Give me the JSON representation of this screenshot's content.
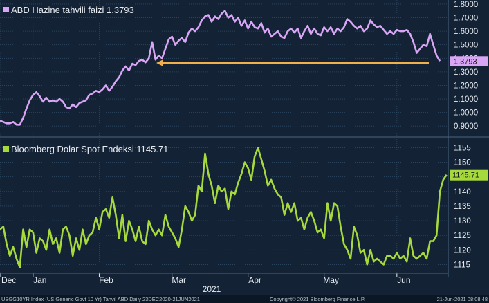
{
  "colors": {
    "background": "#132235",
    "grid": "#2f4a63",
    "text": "#e8edf2",
    "treasury_line": "#d9a6f5",
    "dollar_line": "#a6d93b",
    "arrow": "#f2b04a",
    "footer_bg": "#0b1725"
  },
  "footer": {
    "left": "USGG10YR Index (US Generic Govt 10 Yr) Tahvil ABD  Daily 23DEC2020-21JUN2021",
    "center": "Copyright© 2021 Bloomberg Finance L.P.",
    "right": "21-Jun-2021 08:08:48"
  },
  "chart_data": [
    {
      "type": "line",
      "title": "",
      "legend": "ABD Hazine tahvili faizi 1.3793",
      "legend_placement": "top-left",
      "last_value_label": "1.3793",
      "y_ticks": [
        "1.8000",
        "1.7000",
        "1.6000",
        "1.5000",
        "1.4000",
        "1.3000",
        "1.2000",
        "1.1000",
        "1.0000",
        "0.9000"
      ],
      "ylim": [
        0.85,
        1.81
      ],
      "grid": true,
      "series": [
        {
          "values": [
            0.94,
            0.93,
            0.92,
            0.92,
            0.93,
            0.91,
            0.91,
            0.96,
            1.03,
            1.09,
            1.13,
            1.15,
            1.12,
            1.08,
            1.11,
            1.08,
            1.09,
            1.08,
            1.1,
            1.08,
            1.04,
            1.03,
            1.06,
            1.04,
            1.07,
            1.08,
            1.09,
            1.13,
            1.14,
            1.16,
            1.15,
            1.17,
            1.2,
            1.16,
            1.19,
            1.23,
            1.26,
            1.31,
            1.34,
            1.31,
            1.36,
            1.35,
            1.38,
            1.39,
            1.37,
            1.4,
            1.52,
            1.39,
            1.42,
            1.4,
            1.47,
            1.54,
            1.56,
            1.5,
            1.53,
            1.55,
            1.52,
            1.59,
            1.62,
            1.6,
            1.63,
            1.68,
            1.71,
            1.72,
            1.67,
            1.71,
            1.69,
            1.73,
            1.75,
            1.7,
            1.72,
            1.67,
            1.7,
            1.64,
            1.68,
            1.62,
            1.67,
            1.63,
            1.62,
            1.66,
            1.59,
            1.62,
            1.56,
            1.58,
            1.6,
            1.56,
            1.55,
            1.6,
            1.62,
            1.59,
            1.62,
            1.55,
            1.6,
            1.64,
            1.58,
            1.62,
            1.58,
            1.57,
            1.63,
            1.6,
            1.63,
            1.58,
            1.62,
            1.6,
            1.63,
            1.69,
            1.67,
            1.64,
            1.62,
            1.64,
            1.6,
            1.62,
            1.68,
            1.65,
            1.63,
            1.64,
            1.61,
            1.58,
            1.6,
            1.58,
            1.61,
            1.6,
            1.6,
            1.61,
            1.58,
            1.52,
            1.44,
            1.47,
            1.5,
            1.49,
            1.58,
            1.5,
            1.42,
            1.3793
          ]
        }
      ]
    },
    {
      "type": "line",
      "title": "",
      "legend": "Bloomberg Dolar Spot Endeksi 1145.71",
      "legend_placement": "top-left",
      "last_value_label": "1145.71",
      "y_ticks": [
        "1155",
        "1150",
        "1145",
        "1140",
        "1135",
        "1130",
        "1125",
        "1120",
        "1115"
      ],
      "ylim": [
        1112.5,
        1157
      ],
      "grid": true,
      "series": [
        {
          "values": [
            1127,
            1128,
            1122,
            1118,
            1121,
            1117,
            1114,
            1127,
            1121,
            1127,
            1126,
            1119,
            1124,
            1123,
            1120,
            1127,
            1122,
            1124,
            1119,
            1127,
            1128,
            1125,
            1118,
            1124,
            1120,
            1127,
            1122,
            1125,
            1126,
            1131,
            1127,
            1133,
            1134,
            1131,
            1138,
            1132,
            1124,
            1132,
            1123,
            1130,
            1127,
            1123,
            1128,
            1123,
            1122,
            1130,
            1127,
            1125,
            1127,
            1125,
            1132,
            1128,
            1126,
            1124,
            1121,
            1127,
            1135,
            1133,
            1130,
            1132,
            1142,
            1140,
            1153,
            1146,
            1142,
            1136,
            1142,
            1140,
            1141,
            1134,
            1140,
            1139,
            1143,
            1146,
            1150,
            1148,
            1144,
            1152,
            1155,
            1151,
            1147,
            1142,
            1144,
            1141,
            1139,
            1138,
            1132,
            1136,
            1133,
            1136,
            1130,
            1131,
            1127,
            1131,
            1133,
            1130,
            1126,
            1127,
            1124,
            1136,
            1130,
            1136,
            1135,
            1128,
            1122,
            1120,
            1117,
            1128,
            1125,
            1119,
            1120,
            1115,
            1120,
            1116,
            1117,
            1116,
            1115,
            1118,
            1118,
            1117,
            1119,
            1117,
            1118,
            1116,
            1124,
            1118,
            1117,
            1118,
            1119,
            1117,
            1123,
            1123,
            1125,
            1140,
            1144,
            1145.71
          ]
        }
      ]
    }
  ],
  "x_axis": {
    "month_labels": [
      {
        "label": "Dec",
        "index": 0
      },
      {
        "label": "Jan",
        "index": 10
      },
      {
        "label": "Feb",
        "index": 30
      },
      {
        "label": "Mar",
        "index": 52
      },
      {
        "label": "Apr",
        "index": 75
      },
      {
        "label": "May",
        "index": 98
      },
      {
        "label": "Jun",
        "index": 120
      }
    ],
    "year_label": "2021",
    "year_index": 64
  }
}
